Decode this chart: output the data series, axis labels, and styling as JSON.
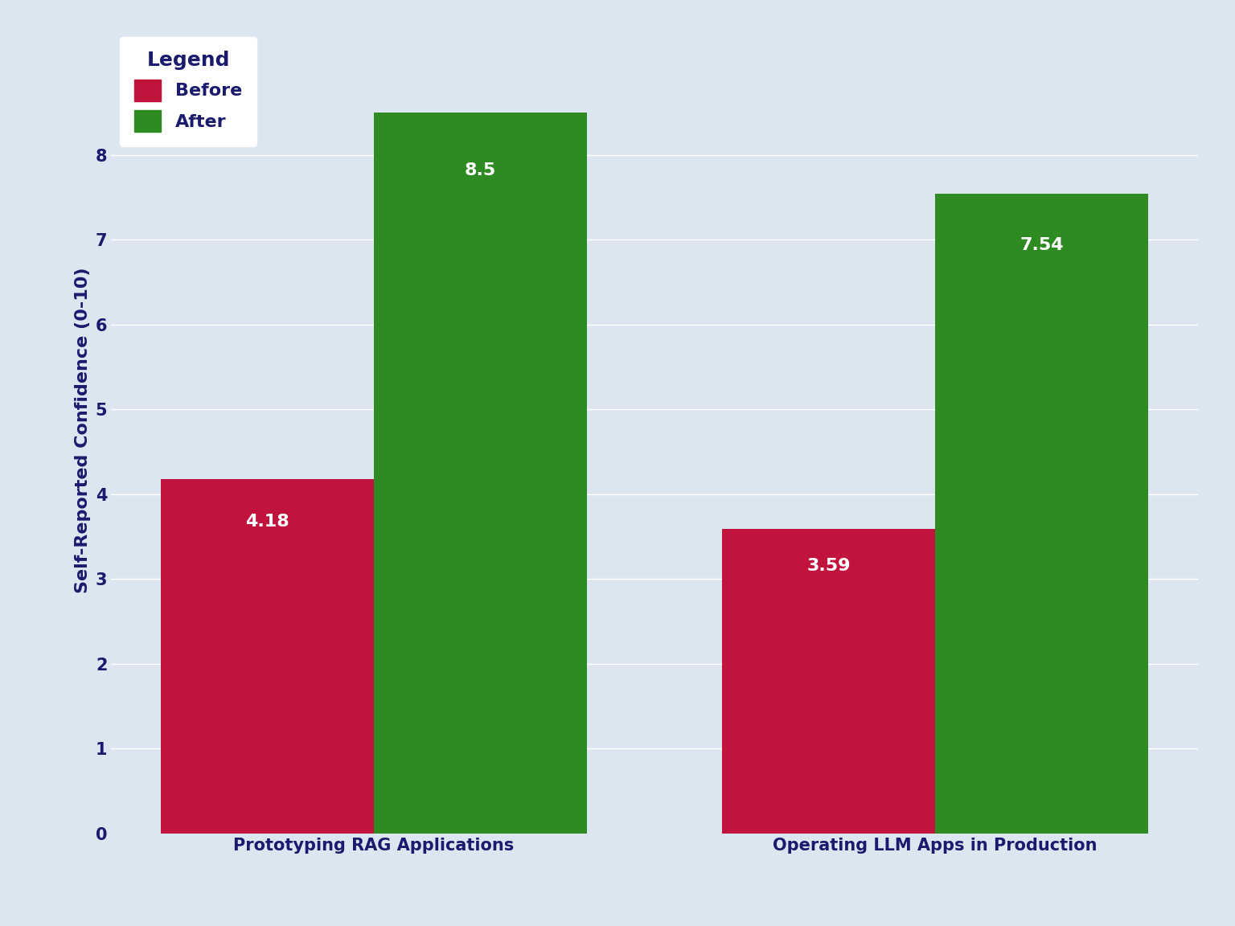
{
  "categories": [
    "Prototyping RAG Applications",
    "Operating LLM Apps in Production"
  ],
  "before_values": [
    4.18,
    3.59
  ],
  "after_values": [
    8.5,
    7.54
  ],
  "before_color": "#C0143C",
  "after_color": "#2E8B22",
  "ylabel": "Self-Reported Confidence (0-10)",
  "ylim": [
    0,
    9.5
  ],
  "yticks": [
    0,
    1,
    2,
    3,
    4,
    5,
    6,
    7,
    8
  ],
  "legend_title": "Legend",
  "legend_before": "Before",
  "legend_after": "After",
  "bar_width": 0.38,
  "label_fontsize": 16,
  "tick_fontsize": 15,
  "legend_fontsize": 16,
  "ylabel_fontsize": 16,
  "plot_bg_color": "#dce6f0",
  "fig_bg_color": "#dce6f0",
  "text_color": "#1a1a6e",
  "annotation_color": "white",
  "annotation_fontsize": 16
}
